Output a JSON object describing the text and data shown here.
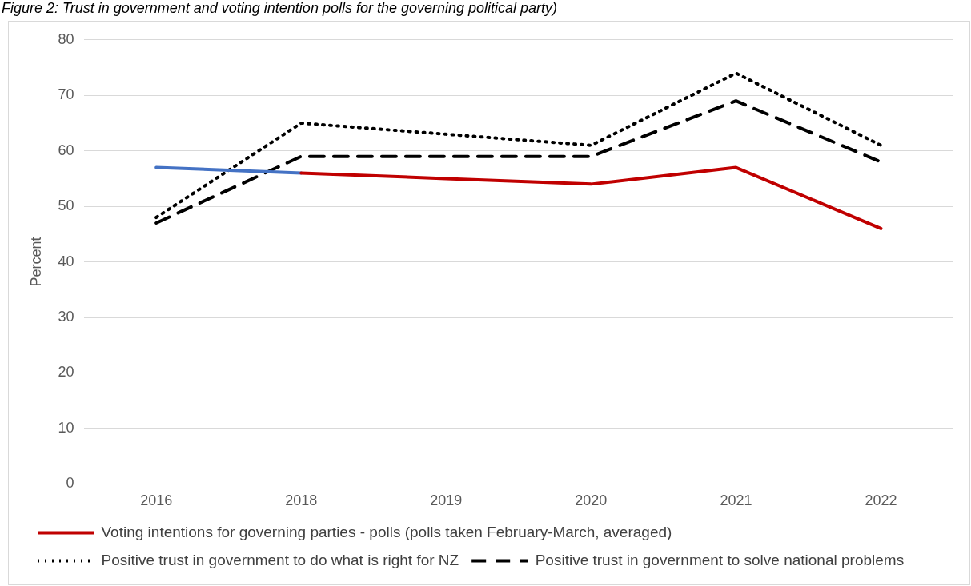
{
  "chart_data": {
    "type": "line",
    "title": "Figure 2: Trust in government and voting intention polls for the governing political party)",
    "ylabel": "Percent",
    "categories": [
      "2016",
      "2018",
      "2019",
      "2020",
      "2021",
      "2022"
    ],
    "series": [
      {
        "name": "Voting intentions for governing parties - polls (polls taken February-March, averaged)",
        "color": "#c00000",
        "values": [
          null,
          56,
          55,
          54,
          57,
          46
        ],
        "line_style": "solid"
      },
      {
        "color": "#4472c4",
        "values": [
          57,
          56,
          null,
          null,
          null,
          null
        ],
        "line_style": "solid"
      },
      {
        "name": "Positive trust in government to do what is right for NZ",
        "color": "#000000",
        "values": [
          48,
          65,
          63,
          61,
          74,
          61
        ],
        "line_style": "dotted"
      },
      {
        "name": "Positive trust in government to solve national problems",
        "color": "#000000",
        "values": [
          47,
          59,
          59,
          59,
          69,
          58
        ],
        "line_style": "dashed"
      }
    ],
    "ylim": [
      0,
      80
    ],
    "yticks": [
      0,
      10,
      20,
      30,
      40,
      50,
      60,
      70,
      80
    ],
    "grid": "y",
    "legend": "bottom",
    "marker": "none"
  }
}
